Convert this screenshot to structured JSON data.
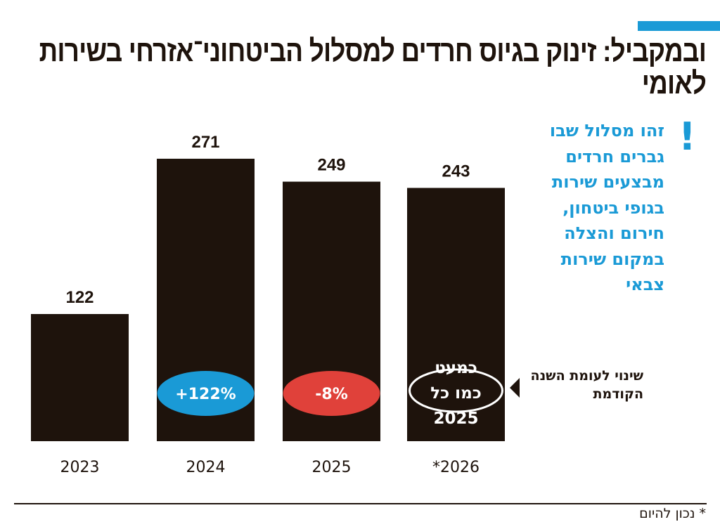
{
  "chart_data": {
    "type": "bar",
    "title": "ובמקביל: זינוק בגיוס חרדים למסלול הביטחוני־אזרחי בשירות לאומי",
    "categories": [
      "2023",
      "2024",
      "2025",
      "*2026"
    ],
    "values": [
      122,
      271,
      249,
      243
    ],
    "value_labels": [
      "122",
      "271",
      "249",
      "243"
    ],
    "change_labels": [
      "",
      "+122%",
      "-8%",
      "כמעט כמו כל 2025"
    ],
    "change_colors": [
      "",
      "#1a9ad6",
      "#e0413a",
      ""
    ],
    "bar_color": "#1e130c",
    "ylim": [
      0,
      280
    ],
    "grid": false,
    "xlabel": "",
    "ylabel": ""
  },
  "side_note": "זהו מסלול שבו גברים חרדים מבצעים שירות בגופי ביטחון, חירום והצלה במקום שירות צבאי",
  "side_note_mark": "!",
  "legend_note": "שינוי לעומת השנה הקודמת",
  "footnote": "* נכון להיום",
  "colors": {
    "accent": "#1a9ad6",
    "negative": "#e0413a",
    "bar": "#1e130c"
  }
}
